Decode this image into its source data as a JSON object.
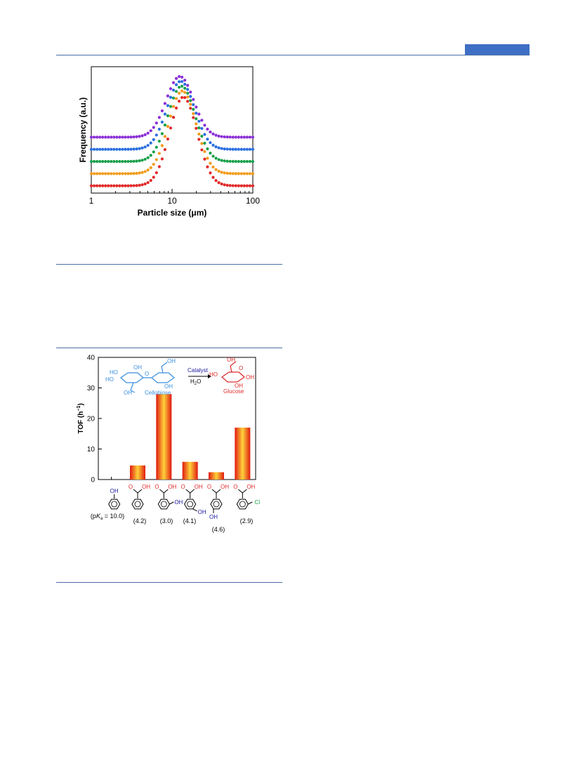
{
  "colors": {
    "rule": "#4a6fa5",
    "header_bar": "#3e6fc4",
    "series": [
      "#8b2fd6",
      "#2a6fe0",
      "#1aa04a",
      "#f29a1a",
      "#e02a2a"
    ],
    "bar_dark": "#e01a10",
    "bar_light": "#ffd23a"
  },
  "figure1": {
    "chart_data": {
      "type": "scatter",
      "x_scale": "log",
      "xlim": [
        1,
        100
      ],
      "xticks": [
        "1",
        "10",
        "100"
      ],
      "xlabel": "Particle size (μm)",
      "ylabel": "Frequency (a.u.)",
      "grid": false,
      "legend": "none",
      "series": [
        {
          "color": "#8b2fd6",
          "baseline": 5.0,
          "peak": 10.0,
          "center": 12.5,
          "width": 0.17
        },
        {
          "color": "#2a6fe0",
          "baseline": 4.0,
          "peak": 9.6,
          "center": 12.8,
          "width": 0.17
        },
        {
          "color": "#1aa04a",
          "baseline": 3.0,
          "peak": 9.2,
          "center": 13.1,
          "width": 0.17
        },
        {
          "color": "#f29a1a",
          "baseline": 2.0,
          "peak": 8.8,
          "center": 13.4,
          "width": 0.17
        },
        {
          "color": "#e02a2a",
          "baseline": 1.0,
          "peak": 8.3,
          "center": 13.8,
          "width": 0.17
        }
      ]
    }
  },
  "figure2": {
    "chart_data": {
      "type": "bar",
      "ylabel": "TOF (h",
      "ylabel_sup": "−1",
      "ylabel_end": ")",
      "ylim": [
        0,
        40
      ],
      "yticks": [
        "0",
        "10",
        "20",
        "30",
        "40"
      ],
      "values": [
        0,
        4.6,
        28.0,
        5.8,
        2.4,
        17.0
      ],
      "categories": [
        "(pKa = 10.0)",
        "(4.2)",
        "(3.0)",
        "(4.1)",
        "(4.6)",
        "(2.9)"
      ]
    },
    "scheme": {
      "reactant": "Cellobiose",
      "catalyst": "Catalyst",
      "water": "H",
      "water_sub": "2",
      "water_end": "O",
      "product": "Glucose",
      "oh": "OH",
      "ho": "HO",
      "o": "O",
      "cl": "Cl"
    },
    "pka_label": {
      "pre": "(p",
      "k": "K",
      "a": "a",
      "post": " = 10.0)"
    }
  }
}
